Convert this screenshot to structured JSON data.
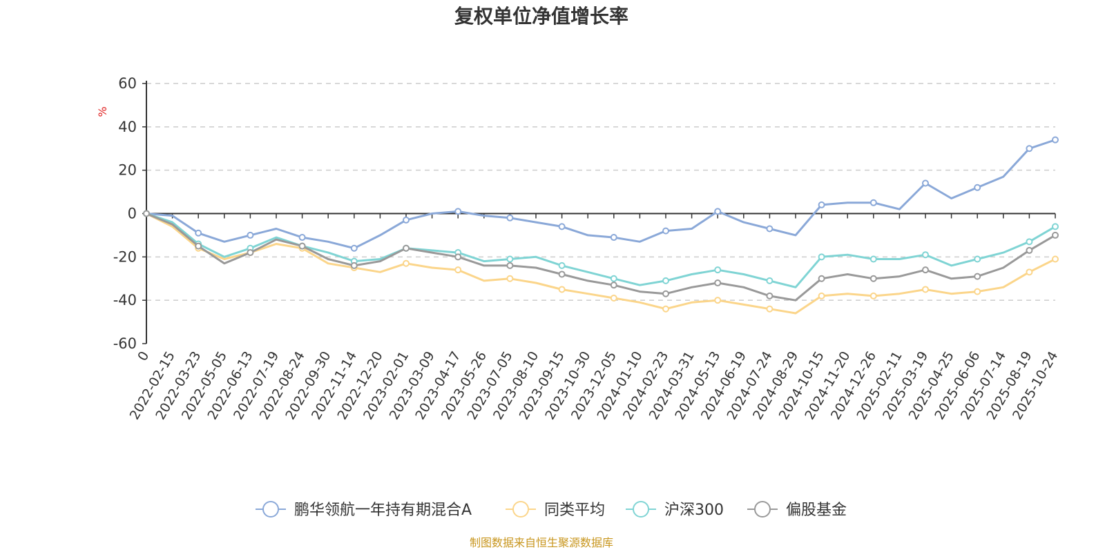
{
  "source_note": "制图数据来自恒生聚源数据库",
  "chart_data": {
    "type": "line",
    "title": "复权单位净值增长率",
    "ylabel": "%",
    "xlabel": "",
    "ylim": [
      -60,
      60
    ],
    "yticks": [
      60,
      40,
      20,
      0,
      -20,
      -40,
      -60
    ],
    "grid": true,
    "legend_position": "bottom-center",
    "x": [
      "0",
      "2022-02-15",
      "2022-03-23",
      "2022-05-05",
      "2022-06-13",
      "2022-07-19",
      "2022-08-24",
      "2022-09-30",
      "2022-11-14",
      "2022-12-20",
      "2023-02-01",
      "2023-03-09",
      "2023-04-17",
      "2023-05-26",
      "2023-07-05",
      "2023-08-10",
      "2023-09-15",
      "2023-10-30",
      "2023-12-05",
      "2024-01-10",
      "2024-02-23",
      "2024-03-31",
      "2024-05-13",
      "2024-06-19",
      "2024-07-24",
      "2024-08-29",
      "2024-10-15",
      "2024-11-20",
      "2024-12-26",
      "2025-02-11",
      "2025-03-19",
      "2025-04-25",
      "2025-06-06",
      "2025-07-14",
      "2025-08-19",
      "2025-10-24"
    ],
    "series": [
      {
        "name": "鹏华领航一年持有期混合A",
        "color": "#8aa8d8",
        "values": [
          0,
          -1,
          -9,
          -13,
          -10,
          -7,
          -11,
          -13,
          -16,
          -10,
          -3,
          0,
          1,
          -1,
          -2,
          -4,
          -6,
          -10,
          -11,
          -13,
          -8,
          -7,
          1,
          -4,
          -7,
          -10,
          4,
          5,
          5,
          2,
          14,
          7,
          12,
          17,
          30,
          34
        ]
      },
      {
        "name": "同类平均",
        "color": "#fbd58a",
        "values": [
          0,
          -6,
          -16,
          -21,
          -18,
          -14,
          -16,
          -23,
          -25,
          -27,
          -23,
          -25,
          -26,
          -31,
          -30,
          -32,
          -35,
          -37,
          -39,
          -41,
          -44,
          -41,
          -40,
          -42,
          -44,
          -46,
          -38,
          -37,
          -38,
          -37,
          -35,
          -37,
          -36,
          -34,
          -27,
          -21
        ]
      },
      {
        "name": "沪深300",
        "color": "#7fd4d4",
        "values": [
          0,
          -4,
          -14,
          -20,
          -16,
          -11,
          -15,
          -18,
          -22,
          -21,
          -16,
          -17,
          -18,
          -22,
          -21,
          -20,
          -24,
          -27,
          -30,
          -33,
          -31,
          -28,
          -26,
          -28,
          -31,
          -34,
          -20,
          -19,
          -21,
          -21,
          -19,
          -24,
          -21,
          -18,
          -13,
          -6
        ]
      },
      {
        "name": "偏股基金",
        "color": "#999999",
        "values": [
          0,
          -5,
          -15,
          -23,
          -18,
          -12,
          -15,
          -21,
          -24,
          -22,
          -16,
          -18,
          -20,
          -24,
          -24,
          -25,
          -28,
          -31,
          -33,
          -36,
          -37,
          -34,
          -32,
          -34,
          -38,
          -40,
          -30,
          -28,
          -30,
          -29,
          -26,
          -30,
          -29,
          -25,
          -17,
          -10
        ]
      }
    ]
  }
}
